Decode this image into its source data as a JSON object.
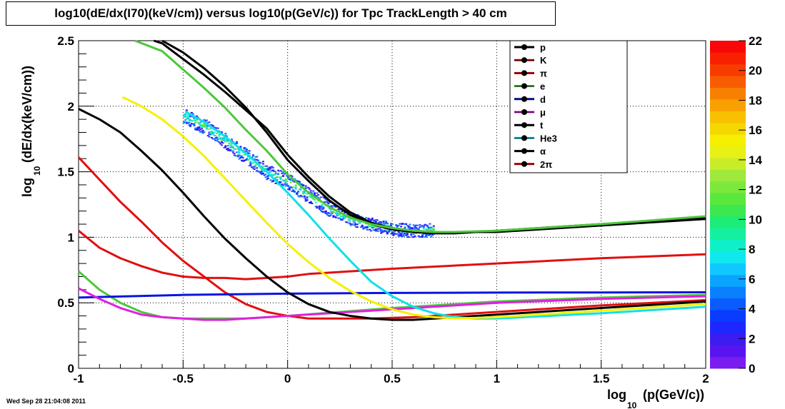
{
  "colors": {
    "background": "#ffffff",
    "frame": "#000000",
    "grid": "#000000",
    "black": "#000000",
    "red": "#e01010",
    "green": "#4cc83a",
    "blue": "#0a14e0",
    "yellow": "#f5f000",
    "magenta": "#e020e0",
    "cyan": "#10e0e8"
  },
  "chart_data": {
    "type": "line",
    "title": "log10(dE/dx(I70)(keV/cm)) versus log10(p(GeV/c)) for Tpc TrackLength > 40 cm",
    "xlabel": "log",
    "xlabel_sub": "10",
    "xlabel_rest": "(p(GeV/c))",
    "ylabel": "log",
    "ylabel_sub": "10",
    "ylabel_rest": "(dE/dx(keV/cm))",
    "xlim": [
      -1,
      2
    ],
    "ylim": [
      0,
      2.5
    ],
    "xticks": [
      "-1",
      "-0.5",
      "0",
      "0.5",
      "1",
      "1.5",
      "2"
    ],
    "yticks": [
      "0",
      "0.5",
      "1",
      "1.5",
      "2",
      "2.5"
    ],
    "grid": true,
    "legend_position": "top-right",
    "footer": "Wed Sep 28 21:04:08 2011",
    "colorbar": {
      "min": 0,
      "max": 22,
      "labels": [
        "0",
        "2",
        "4",
        "6",
        "8",
        "10",
        "12",
        "14",
        "16",
        "18",
        "20",
        "22"
      ],
      "colors": [
        "#7b1cf0",
        "#5a14f0",
        "#3c1cf0",
        "#1c28ff",
        "#0a3cff",
        "#0a5cff",
        "#0a80ff",
        "#0aa4ff",
        "#10c8ff",
        "#10e8f0",
        "#10f0c8",
        "#14f0a0",
        "#1cec78",
        "#3ce850",
        "#5ae83c",
        "#7ce83c",
        "#a0e83c",
        "#c8ec28",
        "#e8f014",
        "#f5f000",
        "#f5d800",
        "#f8c000",
        "#f8a000",
        "#f88000",
        "#f85c00",
        "#f83c00",
        "#f82000",
        "#f80808"
      ]
    },
    "histogram": {
      "description_points": [
        [
          -0.5,
          1.93
        ],
        [
          -0.4,
          1.85
        ],
        [
          -0.3,
          1.74
        ],
        [
          -0.2,
          1.62
        ],
        [
          -0.1,
          1.5
        ],
        [
          0,
          1.43
        ],
        [
          0.1,
          1.32
        ],
        [
          0.2,
          1.22
        ],
        [
          0.3,
          1.14
        ],
        [
          0.4,
          1.1
        ],
        [
          0.5,
          1.07
        ],
        [
          0.6,
          1.05
        ],
        [
          0.7,
          1.06
        ]
      ]
    },
    "series": [
      {
        "name": "p",
        "color": "#000000",
        "x": [
          -0.64,
          -0.6,
          -0.5,
          -0.4,
          -0.3,
          -0.2,
          -0.1,
          0,
          0.1,
          0.2,
          0.3,
          0.4,
          0.5,
          0.6,
          0.7,
          0.8,
          0.9,
          1.0,
          1.5,
          2.0
        ],
        "y": [
          2.5,
          2.48,
          2.36,
          2.24,
          2.11,
          1.97,
          1.83,
          1.63,
          1.46,
          1.31,
          1.19,
          1.11,
          1.07,
          1.05,
          1.04,
          1.04,
          1.04,
          1.04,
          1.09,
          1.14
        ]
      },
      {
        "name": "K",
        "color": "#e01010",
        "x": [
          -1.0,
          -0.9,
          -0.8,
          -0.7,
          -0.6,
          -0.5,
          -0.4,
          -0.3,
          -0.2,
          -0.1,
          0,
          0.1,
          0.3,
          0.5,
          1.0,
          1.5,
          2.0
        ],
        "y": [
          1.05,
          0.92,
          0.84,
          0.78,
          0.73,
          0.7,
          0.69,
          0.69,
          0.68,
          0.69,
          0.7,
          0.72,
          0.74,
          0.76,
          0.8,
          0.84,
          0.87
        ]
      },
      {
        "name": "π",
        "color": "#e01010",
        "x": [
          -1.0,
          -0.9,
          -0.8,
          -0.7,
          -0.6,
          -0.5,
          -0.4,
          -0.3,
          -0.2,
          -0.1,
          0,
          0.1,
          0.2,
          0.4,
          0.6,
          0.8,
          1.0,
          1.5,
          2.0
        ],
        "y": [
          1.61,
          1.44,
          1.27,
          1.12,
          0.96,
          0.82,
          0.7,
          0.58,
          0.49,
          0.43,
          0.4,
          0.38,
          0.38,
          0.38,
          0.39,
          0.41,
          0.43,
          0.48,
          0.52
        ]
      },
      {
        "name": "e",
        "color": "#4cc83a",
        "x": [
          -1.0,
          -0.9,
          -0.8,
          -0.7,
          -0.6,
          -0.5,
          -0.4,
          -0.3,
          -0.2,
          0,
          0.5,
          1.0,
          1.5,
          2.0
        ],
        "y": [
          0.74,
          0.6,
          0.5,
          0.43,
          0.39,
          0.38,
          0.38,
          0.38,
          0.38,
          0.4,
          0.46,
          0.51,
          0.54,
          0.56
        ]
      },
      {
        "name": "d",
        "color": "#0a14e0",
        "x": [
          -1.0,
          -0.5,
          0,
          0.5,
          1.0,
          1.5,
          2.0
        ],
        "y": [
          0.54,
          0.56,
          0.57,
          0.575,
          0.578,
          0.579,
          0.58
        ]
      },
      {
        "name": "μ",
        "color": "#e020e0",
        "x": [
          -1.0,
          -0.9,
          -0.8,
          -0.7,
          -0.6,
          -0.5,
          -0.4,
          -0.3,
          -0.2,
          0,
          0.5,
          1.0,
          1.5,
          2.0
        ],
        "y": [
          0.61,
          0.53,
          0.46,
          0.41,
          0.39,
          0.38,
          0.37,
          0.37,
          0.38,
          0.4,
          0.45,
          0.5,
          0.53,
          0.55
        ]
      },
      {
        "name": "t",
        "color": "#000000",
        "x": [
          -1.0,
          -0.9,
          -0.8,
          -0.7,
          -0.6,
          -0.5,
          -0.4,
          -0.3,
          -0.2,
          -0.1,
          0,
          0.1,
          0.2,
          0.3,
          0.4,
          0.5,
          0.6,
          0.8,
          1.0,
          1.5,
          2.0
        ],
        "y": [
          1.98,
          1.9,
          1.8,
          1.66,
          1.51,
          1.34,
          1.16,
          0.99,
          0.84,
          0.7,
          0.58,
          0.49,
          0.43,
          0.4,
          0.38,
          0.37,
          0.37,
          0.39,
          0.41,
          0.46,
          0.51
        ]
      },
      {
        "name": "He3",
        "color": "#10e0e8",
        "x": [
          -0.49,
          -0.4,
          -0.3,
          -0.2,
          -0.1,
          0,
          0.1,
          0.2,
          0.3,
          0.4,
          0.5,
          0.6,
          0.7,
          0.8,
          0.9,
          1.0,
          1.5,
          2.0
        ],
        "y": [
          1.96,
          1.88,
          1.77,
          1.64,
          1.5,
          1.34,
          1.17,
          0.99,
          0.82,
          0.66,
          0.55,
          0.47,
          0.42,
          0.39,
          0.38,
          0.38,
          0.42,
          0.47
        ]
      },
      {
        "name": "α",
        "color": "#000000",
        "x": [
          -0.6,
          -0.5,
          -0.4,
          -0.3,
          -0.2,
          -0.1,
          0,
          0.1,
          0.2,
          0.3,
          0.4,
          0.5,
          0.6,
          0.7,
          0.8,
          0.9,
          1.0,
          1.5,
          2.0
        ],
        "y": [
          2.5,
          2.41,
          2.29,
          2.15,
          1.99,
          1.8,
          1.59,
          1.43,
          1.28,
          1.17,
          1.1,
          1.06,
          1.04,
          1.03,
          1.03,
          1.04,
          1.05,
          1.1,
          1.15
        ]
      },
      {
        "name": "2π",
        "color": "#e01010",
        "x": [
          -1.0,
          -0.5,
          0,
          0.5,
          1.0,
          1.5,
          2.0
        ],
        "y": [
          0.54,
          0.56,
          0.57,
          0.575,
          0.578,
          0.579,
          0.58
        ]
      }
    ],
    "extra_lines": [
      {
        "name": "yellow",
        "color": "#f5f000",
        "x": [
          -0.79,
          -0.7,
          -0.6,
          -0.5,
          -0.4,
          -0.3,
          -0.2,
          -0.1,
          0,
          0.1,
          0.2,
          0.3,
          0.4,
          0.5,
          0.6,
          0.7,
          0.8,
          1.0,
          1.5,
          2.0
        ],
        "y": [
          2.07,
          2.0,
          1.9,
          1.77,
          1.62,
          1.45,
          1.28,
          1.11,
          0.95,
          0.81,
          0.69,
          0.59,
          0.51,
          0.45,
          0.41,
          0.39,
          0.38,
          0.39,
          0.44,
          0.49
        ]
      },
      {
        "name": "green-upper",
        "color": "#4cc83a",
        "x": [
          -0.73,
          -0.6,
          -0.5,
          -0.4,
          -0.3,
          -0.2,
          -0.1,
          0,
          0.1,
          0.2,
          0.3,
          0.4,
          0.5,
          0.6,
          0.7,
          0.8,
          1.0,
          1.5,
          2.0
        ],
        "y": [
          2.5,
          2.42,
          2.28,
          2.14,
          1.99,
          1.82,
          1.66,
          1.48,
          1.34,
          1.23,
          1.15,
          1.1,
          1.07,
          1.05,
          1.04,
          1.04,
          1.05,
          1.1,
          1.16
        ]
      }
    ]
  }
}
